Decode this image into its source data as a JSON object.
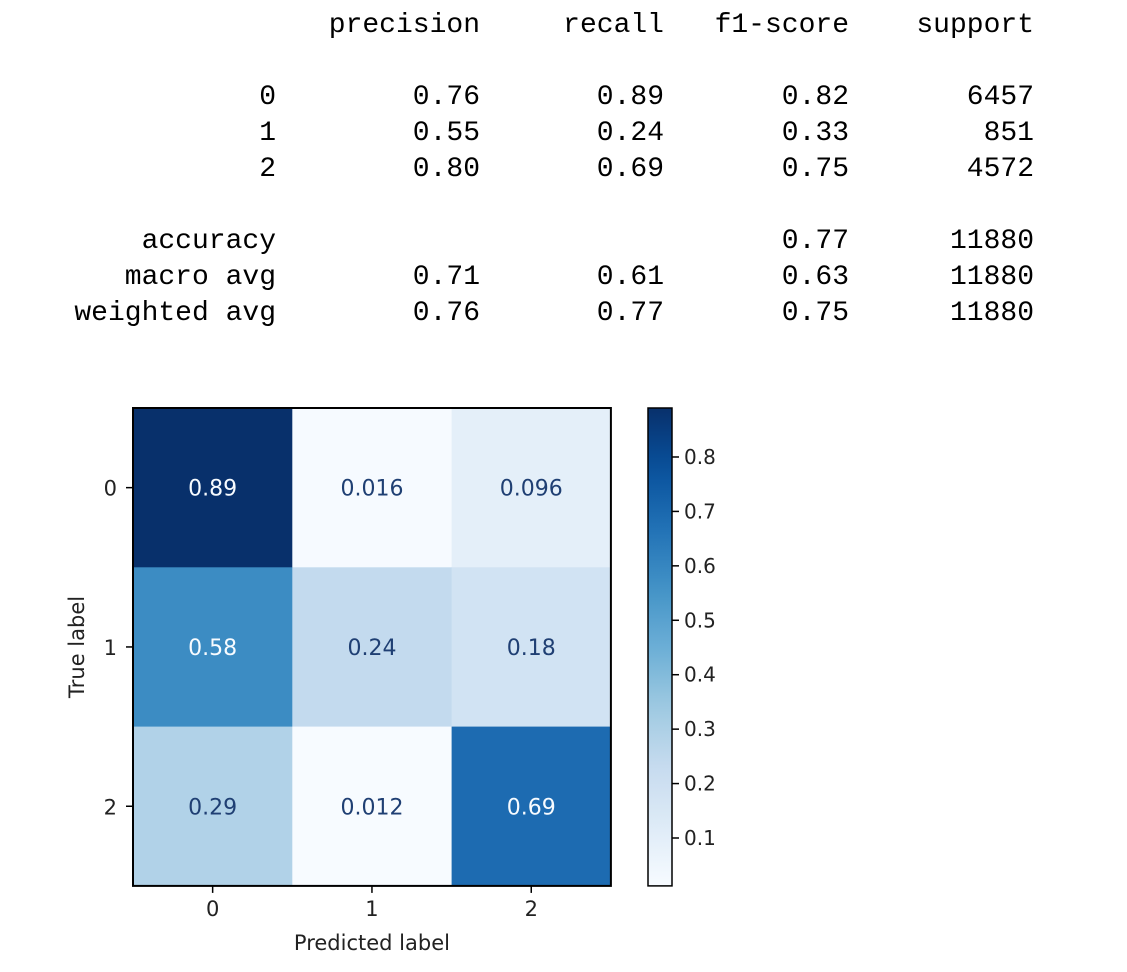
{
  "report": {
    "headers": [
      "precision",
      "recall",
      "f1-score",
      "support"
    ],
    "rows": [
      {
        "label": "0",
        "precision": "0.76",
        "recall": "0.89",
        "f1": "0.82",
        "support": "6457"
      },
      {
        "label": "1",
        "precision": "0.55",
        "recall": "0.24",
        "f1": "0.33",
        "support": "851"
      },
      {
        "label": "2",
        "precision": "0.80",
        "recall": "0.69",
        "f1": "0.75",
        "support": "4572"
      },
      {
        "label": "accuracy",
        "precision": "",
        "recall": "",
        "f1": "0.77",
        "support": "11880"
      },
      {
        "label": "macro avg",
        "precision": "0.71",
        "recall": "0.61",
        "f1": "0.63",
        "support": "11880"
      },
      {
        "label": "weighted avg",
        "precision": "0.76",
        "recall": "0.77",
        "f1": "0.75",
        "support": "11880"
      }
    ]
  },
  "chart_data": {
    "type": "heatmap",
    "xlabel": "Predicted label",
    "ylabel": "True label",
    "x_categories": [
      "0",
      "1",
      "2"
    ],
    "y_categories": [
      "0",
      "1",
      "2"
    ],
    "matrix": [
      [
        0.89,
        0.016,
        0.096
      ],
      [
        0.58,
        0.24,
        0.18
      ],
      [
        0.29,
        0.012,
        0.69
      ]
    ],
    "cell_labels": [
      [
        "0.89",
        "0.016",
        "0.096"
      ],
      [
        "0.58",
        "0.24",
        "0.18"
      ],
      [
        "0.29",
        "0.012",
        "0.69"
      ]
    ],
    "colormap": "Blues",
    "colorbar": {
      "range": [
        0.012,
        0.89
      ],
      "ticks": [
        0.1,
        0.2,
        0.3,
        0.4,
        0.5,
        0.6,
        0.7,
        0.8
      ],
      "tick_labels": [
        "0.1",
        "0.2",
        "0.3",
        "0.4",
        "0.5",
        "0.6",
        "0.7",
        "0.8"
      ]
    },
    "colors": {
      "light": "#f7fbff",
      "dark": "#08306b",
      "text_dark": "#08306b",
      "text_light": "#f7fbff"
    }
  }
}
